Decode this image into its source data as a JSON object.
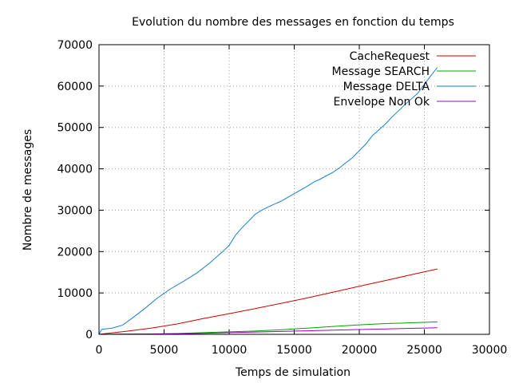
{
  "chart_data": {
    "type": "line",
    "title": "Evolution du nombre des messages en fonction du temps",
    "xlabel": "Temps de simulation",
    "ylabel": "Nombre de messages",
    "xlim": [
      0,
      30000
    ],
    "ylim": [
      0,
      70000
    ],
    "xticks": [
      0,
      5000,
      10000,
      15000,
      20000,
      25000,
      30000
    ],
    "xtick_labels": [
      "0",
      "5000",
      "10000",
      "15000",
      "20000",
      "25000",
      "30000"
    ],
    "yticks": [
      0,
      10000,
      20000,
      30000,
      40000,
      50000,
      60000,
      70000
    ],
    "ytick_labels": [
      "0",
      "10000",
      "20000",
      "30000",
      "40000",
      "50000",
      "60000",
      "70000"
    ],
    "grid": true,
    "legend_position": "top-right",
    "series": [
      {
        "name": "CacheRequest",
        "color": "#cc0000",
        "x": [
          0,
          2000,
          4000,
          6000,
          8000,
          10000,
          12000,
          14000,
          16000,
          18000,
          20000,
          22000,
          24000,
          26000
        ],
        "y": [
          0,
          700,
          1500,
          2500,
          3800,
          5000,
          6200,
          7500,
          8800,
          10200,
          11600,
          13000,
          14400,
          15800
        ]
      },
      {
        "name": "Message SEARCH",
        "color": "#00a000",
        "x": [
          0,
          2000,
          4000,
          6000,
          8000,
          10000,
          12000,
          14000,
          16000,
          18000,
          20000,
          22000,
          24000,
          26000
        ],
        "y": [
          0,
          50,
          100,
          200,
          400,
          600,
          800,
          1100,
          1500,
          1900,
          2300,
          2600,
          2800,
          3000
        ]
      },
      {
        "name": "Message DELTA",
        "color": "#1a7fd0",
        "x": [
          0,
          200,
          1000,
          1800,
          2500,
          3500,
          4500,
          5500,
          6500,
          7500,
          8500,
          9500,
          10000,
          10500,
          11000,
          12000,
          12500,
          13000,
          14000,
          15000,
          16000,
          16500,
          17000,
          18000,
          18500,
          19500,
          20500,
          21000,
          22000,
          22500,
          23500,
          24500,
          25500,
          26000
        ],
        "y": [
          0,
          1200,
          1500,
          2200,
          3800,
          6200,
          8800,
          11000,
          12800,
          14800,
          17200,
          20000,
          21500,
          24000,
          25800,
          29000,
          30000,
          30800,
          32200,
          34000,
          35800,
          36800,
          37500,
          39200,
          40300,
          42800,
          46000,
          48000,
          50800,
          52500,
          55500,
          58300,
          62500,
          64500
        ]
      },
      {
        "name": "Envelope Non Ok",
        "color": "#a000c0",
        "x": [
          0,
          2000,
          4000,
          6000,
          8000,
          10000,
          12000,
          14000,
          16000,
          18000,
          20000,
          22000,
          24000,
          26000
        ],
        "y": [
          0,
          30,
          80,
          150,
          250,
          400,
          550,
          700,
          850,
          1000,
          1150,
          1300,
          1450,
          1600
        ]
      }
    ]
  }
}
